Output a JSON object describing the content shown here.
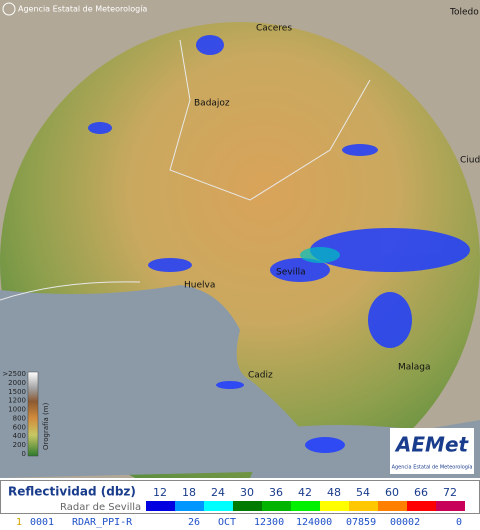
{
  "header": {
    "copyright": "Agencia Estatal de Meteorología"
  },
  "cities": [
    {
      "label": "Caceres"
    },
    {
      "label": "Toledo"
    },
    {
      "label": "Badajoz"
    },
    {
      "label": "Ciudad Real"
    },
    {
      "label": "Huelva"
    },
    {
      "label": "Sevilla"
    },
    {
      "label": "Cadiz"
    },
    {
      "label": "Malaga"
    }
  ],
  "orography": {
    "title": "Orografía (m)",
    "ticks": [
      ">2500",
      "2000",
      "1500",
      "1200",
      "1000",
      "800",
      "600",
      "400",
      "200",
      "0"
    ]
  },
  "logo": {
    "name": "AEMet",
    "subtitle": "Agencia Estatal de Meteorología"
  },
  "legend": {
    "title": "Reflectividad (dbz)",
    "subtitle": "Radar de Sevilla",
    "levels": [
      {
        "label": 12,
        "color": "#0000e0"
      },
      {
        "label": 18,
        "color": "#0096ff"
      },
      {
        "label": 24,
        "color": "#00ffff"
      },
      {
        "label": 30,
        "color": "#007a00"
      },
      {
        "label": 36,
        "color": "#00b400"
      },
      {
        "label": 42,
        "color": "#00f000"
      },
      {
        "label": 48,
        "color": "#ffff00"
      },
      {
        "label": 54,
        "color": "#ffc800"
      },
      {
        "label": 60,
        "color": "#ff8000"
      },
      {
        "label": 66,
        "color": "#ff0000"
      },
      {
        "label": 72,
        "color": "#c8005a"
      }
    ]
  },
  "status": [
    "1",
    "0001",
    "RDAR_PPI-R",
    "26",
    "OCT",
    "12300",
    "124000",
    "07859",
    "00002",
    "0"
  ]
}
